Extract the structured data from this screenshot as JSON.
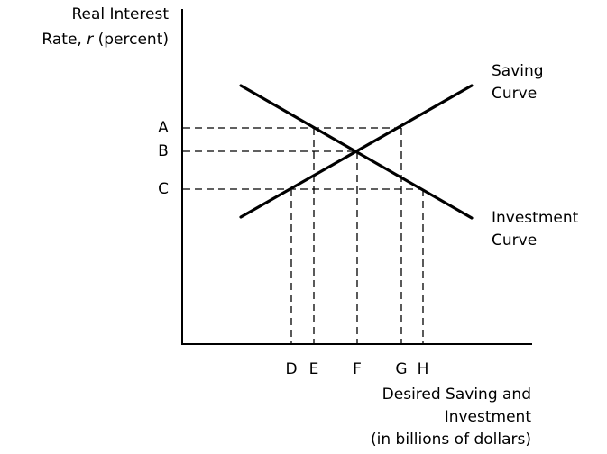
{
  "y_axis_label": {
    "line1": "Real Interest",
    "line2_prefix": "Rate, ",
    "line2_var": "r",
    "line2_suffix": " (percent)"
  },
  "x_axis_label": {
    "line1": "Desired Saving and",
    "line2": "Investment",
    "line3": "(in billions of dollars)"
  },
  "curves": {
    "saving": {
      "line1": "Saving",
      "line2": "Curve",
      "slope": "upward"
    },
    "investment": {
      "line1": "Investment",
      "line2": "Curve",
      "slope": "downward"
    }
  },
  "y_ticks": [
    "A",
    "B",
    "C"
  ],
  "x_ticks": [
    "D",
    "E",
    "F",
    "G",
    "H"
  ],
  "colors": {
    "line": "#000000",
    "background": "#ffffff"
  }
}
